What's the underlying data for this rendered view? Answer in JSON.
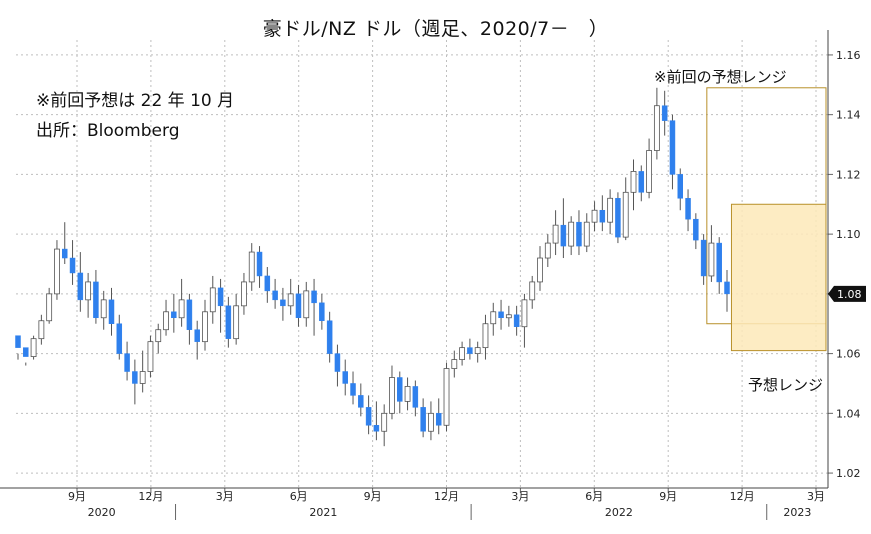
{
  "chart_data": {
    "type": "candlestick",
    "title": "豪ドル/NZ ドル（週足、2020/7－　）",
    "notes": [
      "※前回予想は 22 年 10 月",
      "出所：Bloomberg"
    ],
    "y_axis": {
      "ylim": [
        1.015,
        1.165
      ],
      "ticks": [
        1.02,
        1.04,
        1.06,
        1.08,
        1.1,
        1.12,
        1.14,
        1.16
      ],
      "tick_labels": [
        "1.02",
        "1.04",
        "1.06",
        "1.08",
        "1.10",
        "1.12",
        "1.14",
        "1.16"
      ],
      "position": "right"
    },
    "x_axis": {
      "month_ticks": [
        {
          "date": "2020-09",
          "label": "9月"
        },
        {
          "date": "2020-12",
          "label": "12月"
        },
        {
          "date": "2021-03",
          "label": "3月"
        },
        {
          "date": "2021-06",
          "label": "6月"
        },
        {
          "date": "2021-09",
          "label": "9月"
        },
        {
          "date": "2021-12",
          "label": "12月"
        },
        {
          "date": "2022-03",
          "label": "3月"
        },
        {
          "date": "2022-06",
          "label": "6月"
        },
        {
          "date": "2022-09",
          "label": "9月"
        },
        {
          "date": "2022-12",
          "label": "12月"
        },
        {
          "date": "2023-03",
          "label": "3月"
        }
      ],
      "years": [
        "2020",
        "2021",
        "2022",
        "2023"
      ],
      "range": [
        "2020-07",
        "2023-04"
      ]
    },
    "current_price": {
      "value": 1.08,
      "label": "1.08"
    },
    "ranges": [
      {
        "label": "※前回の予想レンジ",
        "low": 1.07,
        "high": 1.149,
        "start": "2022-10",
        "end": "2023-03",
        "fill": "none",
        "stroke": "#b8902a"
      },
      {
        "label": "予想レンジ",
        "low": 1.061,
        "high": 1.11,
        "start": "2022-11",
        "end": "2023-03",
        "fill": "#fde9b8",
        "stroke": "#b8902a"
      }
    ],
    "colors": {
      "up": "#ffffff",
      "down": "#2f80ed",
      "wick": "#555555",
      "grid": "#bfbfbf"
    },
    "series": [
      {
        "values": [
          [
            1.066,
            1.062,
            1.06,
            1.058
          ],
          [
            1.062,
            1.059,
            1.057,
            1.056
          ],
          [
            1.059,
            1.065,
            1.066,
            1.058
          ],
          [
            1.065,
            1.071,
            1.073,
            1.063
          ],
          [
            1.071,
            1.08,
            1.082,
            1.07
          ],
          [
            1.08,
            1.095,
            1.098,
            1.078
          ],
          [
            1.095,
            1.092,
            1.104,
            1.09
          ],
          [
            1.092,
            1.087,
            1.098,
            1.083
          ],
          [
            1.087,
            1.078,
            1.094,
            1.074
          ],
          [
            1.078,
            1.084,
            1.087,
            1.072
          ],
          [
            1.084,
            1.072,
            1.088,
            1.07
          ],
          [
            1.072,
            1.078,
            1.081,
            1.068
          ],
          [
            1.078,
            1.07,
            1.082,
            1.066
          ],
          [
            1.07,
            1.06,
            1.073,
            1.058
          ],
          [
            1.06,
            1.054,
            1.064,
            1.051
          ],
          [
            1.054,
            1.05,
            1.058,
            1.043
          ],
          [
            1.05,
            1.054,
            1.061,
            1.047
          ],
          [
            1.054,
            1.064,
            1.066,
            1.052
          ],
          [
            1.064,
            1.068,
            1.07,
            1.06
          ],
          [
            1.068,
            1.074,
            1.078,
            1.066
          ],
          [
            1.074,
            1.072,
            1.08,
            1.067
          ],
          [
            1.072,
            1.078,
            1.085,
            1.069
          ],
          [
            1.078,
            1.068,
            1.08,
            1.063
          ],
          [
            1.068,
            1.064,
            1.071,
            1.058
          ],
          [
            1.064,
            1.074,
            1.078,
            1.061
          ],
          [
            1.074,
            1.082,
            1.086,
            1.07
          ],
          [
            1.082,
            1.076,
            1.085,
            1.067
          ],
          [
            1.076,
            1.065,
            1.079,
            1.062
          ],
          [
            1.065,
            1.076,
            1.08,
            1.063
          ],
          [
            1.076,
            1.084,
            1.087,
            1.073
          ],
          [
            1.084,
            1.094,
            1.097,
            1.081
          ],
          [
            1.094,
            1.086,
            1.096,
            1.082
          ],
          [
            1.086,
            1.081,
            1.089,
            1.077
          ],
          [
            1.081,
            1.078,
            1.085,
            1.075
          ],
          [
            1.078,
            1.076,
            1.082,
            1.071
          ],
          [
            1.076,
            1.08,
            1.085,
            1.073
          ],
          [
            1.08,
            1.072,
            1.083,
            1.069
          ],
          [
            1.072,
            1.081,
            1.084,
            1.069
          ],
          [
            1.081,
            1.077,
            1.085,
            1.066
          ],
          [
            1.077,
            1.071,
            1.08,
            1.068
          ],
          [
            1.071,
            1.06,
            1.074,
            1.057
          ],
          [
            1.06,
            1.054,
            1.063,
            1.049
          ],
          [
            1.054,
            1.05,
            1.058,
            1.046
          ],
          [
            1.05,
            1.046,
            1.054,
            1.043
          ],
          [
            1.046,
            1.042,
            1.05,
            1.039
          ],
          [
            1.042,
            1.036,
            1.046,
            1.033
          ],
          [
            1.036,
            1.034,
            1.044,
            1.031
          ],
          [
            1.034,
            1.04,
            1.043,
            1.029
          ],
          [
            1.04,
            1.052,
            1.056,
            1.038
          ],
          [
            1.052,
            1.044,
            1.054,
            1.04
          ],
          [
            1.044,
            1.049,
            1.052,
            1.041
          ],
          [
            1.049,
            1.042,
            1.051,
            1.039
          ],
          [
            1.042,
            1.034,
            1.045,
            1.032
          ],
          [
            1.034,
            1.04,
            1.044,
            1.031
          ],
          [
            1.04,
            1.036,
            1.045,
            1.033
          ],
          [
            1.036,
            1.055,
            1.057,
            1.034
          ],
          [
            1.055,
            1.058,
            1.061,
            1.052
          ],
          [
            1.058,
            1.062,
            1.064,
            1.056
          ],
          [
            1.062,
            1.06,
            1.065,
            1.058
          ],
          [
            1.06,
            1.062,
            1.064,
            1.057
          ],
          [
            1.062,
            1.07,
            1.073,
            1.058
          ],
          [
            1.07,
            1.074,
            1.077,
            1.066
          ],
          [
            1.074,
            1.072,
            1.078,
            1.068
          ],
          [
            1.072,
            1.073,
            1.076,
            1.069
          ],
          [
            1.073,
            1.069,
            1.076,
            1.066
          ],
          [
            1.069,
            1.078,
            1.08,
            1.062
          ],
          [
            1.078,
            1.084,
            1.086,
            1.075
          ],
          [
            1.084,
            1.092,
            1.096,
            1.081
          ],
          [
            1.092,
            1.097,
            1.1,
            1.089
          ],
          [
            1.097,
            1.103,
            1.108,
            1.093
          ],
          [
            1.103,
            1.096,
            1.112,
            1.092
          ],
          [
            1.096,
            1.104,
            1.106,
            1.093
          ],
          [
            1.104,
            1.096,
            1.108,
            1.093
          ],
          [
            1.096,
            1.104,
            1.107,
            1.094
          ],
          [
            1.104,
            1.108,
            1.111,
            1.101
          ],
          [
            1.108,
            1.104,
            1.113,
            1.101
          ],
          [
            1.104,
            1.112,
            1.115,
            1.1
          ],
          [
            1.112,
            1.099,
            1.114,
            1.097
          ],
          [
            1.099,
            1.114,
            1.119,
            1.098
          ],
          [
            1.114,
            1.121,
            1.125,
            1.108
          ],
          [
            1.121,
            1.114,
            1.123,
            1.111
          ],
          [
            1.114,
            1.128,
            1.132,
            1.112
          ],
          [
            1.128,
            1.143,
            1.149,
            1.125
          ],
          [
            1.143,
            1.138,
            1.148,
            1.133
          ],
          [
            1.138,
            1.12,
            1.14,
            1.115
          ],
          [
            1.12,
            1.112,
            1.122,
            1.108
          ],
          [
            1.112,
            1.105,
            1.115,
            1.101
          ],
          [
            1.105,
            1.098,
            1.107,
            1.095
          ],
          [
            1.098,
            1.086,
            1.1,
            1.083
          ],
          [
            1.086,
            1.097,
            1.103,
            1.084
          ],
          [
            1.097,
            1.084,
            1.099,
            1.08
          ],
          [
            1.084,
            1.08,
            1.088,
            1.074
          ]
        ]
      }
    ]
  }
}
